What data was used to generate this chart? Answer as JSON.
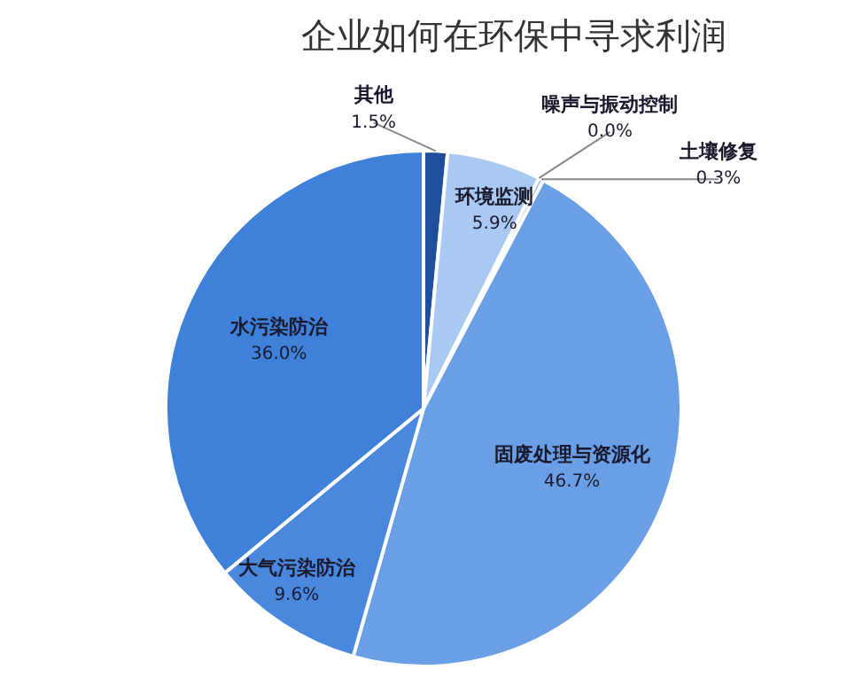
{
  "chart_data": {
    "type": "pie",
    "title": "企业如何在环保中寻求利润",
    "categories": [
      "其他",
      "环境监测",
      "噪声与振动控制",
      "土壤修复",
      "固废处理与资源化",
      "大气污染防治",
      "水污染防治"
    ],
    "values": [
      1.5,
      5.9,
      0.0,
      0.3,
      46.7,
      9.6,
      36.0
    ],
    "colors": [
      "#1f4f9c",
      "#a9c9f2",
      "#c9dcf5",
      "#8fb5ea",
      "#6a9fe6",
      "#4a88dd",
      "#3f80d8"
    ],
    "value_labels": [
      "1.5%",
      "5.9%",
      "0.0%",
      "0.3%",
      "46.7%",
      "9.6%",
      "36.0%"
    ],
    "legend": false
  }
}
